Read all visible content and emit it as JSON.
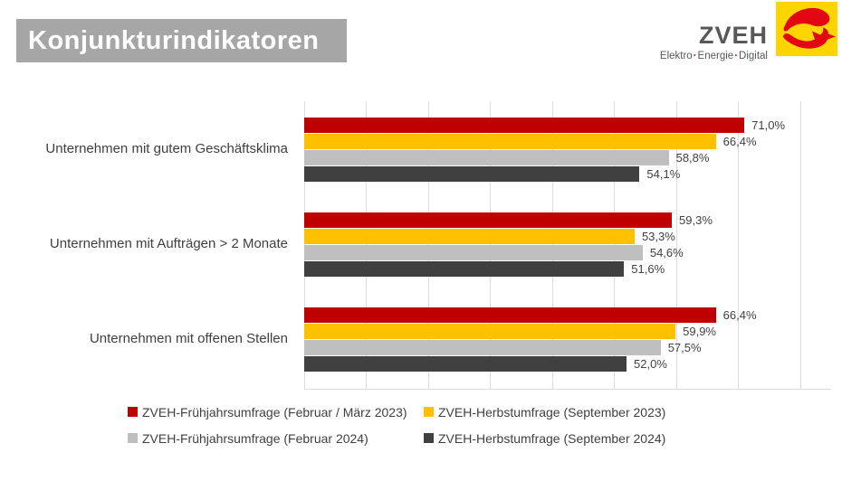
{
  "header": {
    "title": "Konjunkturindikatoren",
    "title_bg": "#A6A6A6",
    "logo": {
      "name": "ZVEH",
      "tagline_words": [
        "Elektro",
        "Energie",
        "Digital"
      ],
      "tagline_separator": "·",
      "brand_red": "#E30613",
      "brand_yellow": "#FFD500"
    }
  },
  "chart_data": {
    "type": "bar",
    "orientation": "horizontal",
    "title": "Konjunkturindikatoren",
    "categories": [
      "Unternehmen mit gutem Geschäftsklima",
      "Unternehmen mit Aufträgen > 2 Monate",
      "Unternehmen mit offenen Stellen"
    ],
    "series": [
      {
        "name": "ZVEH-Frühjahrsumfrage (Februar / März 2023)",
        "color": "#C00000",
        "values": [
          71.0,
          59.3,
          66.4
        ],
        "value_labels": [
          "71,0%",
          "59,3%",
          "66,4%"
        ]
      },
      {
        "name": "ZVEH-Herbstumfrage (September 2023)",
        "color": "#FFC000",
        "values": [
          66.4,
          53.3,
          59.9
        ],
        "value_labels": [
          "66,4%",
          "53,3%",
          "59,9%"
        ]
      },
      {
        "name": "ZVEH-Frühjahrsumfrage (Februar 2024)",
        "color": "#BFBFBF",
        "values": [
          58.8,
          54.6,
          57.5
        ],
        "value_labels": [
          "58,8%",
          "54,6%",
          "57,5%"
        ]
      },
      {
        "name": "ZVEH-Herbstumfrage (September 2024)",
        "color": "#404040",
        "values": [
          54.1,
          51.6,
          52.0
        ],
        "value_labels": [
          "54,1%",
          "51,6%",
          "52,0%"
        ]
      }
    ],
    "xlim": [
      0,
      85
    ],
    "gridlines": {
      "interval": 10,
      "color": "#DCDCDC",
      "visible": true
    },
    "value_labels_shown": true,
    "legend_position": "bottom",
    "legend_rows": [
      [
        0,
        1
      ],
      [
        2,
        3
      ]
    ]
  }
}
